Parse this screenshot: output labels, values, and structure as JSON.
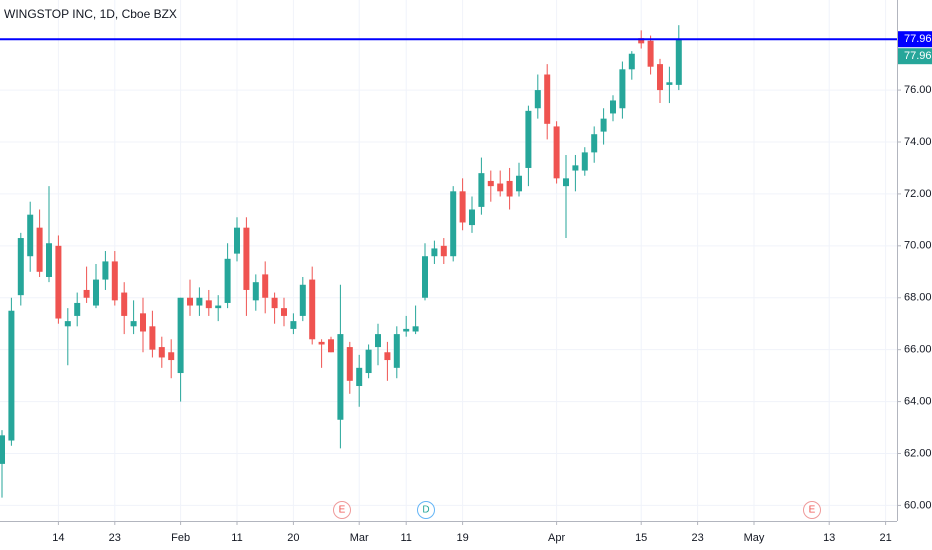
{
  "chart_data": {
    "type": "candlestick",
    "title": "WINGSTOP INC, 1D, Cboe BZX",
    "categories": [
      null,
      null,
      null,
      null,
      null,
      null,
      "14",
      null,
      null,
      null,
      null,
      null,
      "23",
      null,
      null,
      null,
      null,
      null,
      null,
      "Feb",
      null,
      null,
      null,
      null,
      null,
      "11",
      null,
      null,
      null,
      null,
      null,
      "20",
      null,
      null,
      null,
      null,
      null,
      null,
      "Mar",
      null,
      null,
      null,
      null,
      "11",
      null,
      null,
      null,
      null,
      null,
      "19",
      null,
      null,
      null,
      null,
      null,
      null,
      null,
      null,
      null,
      "Apr",
      null,
      null,
      null,
      null,
      null,
      null,
      null,
      null,
      "15",
      null,
      null,
      null,
      null,
      null,
      "23",
      null,
      null,
      null,
      null,
      null,
      "May",
      null,
      null,
      null,
      null,
      null,
      null,
      null,
      "13",
      null,
      null,
      null,
      null,
      null,
      "21",
      null
    ],
    "open": [
      61.6,
      62.5,
      68.1,
      69.6,
      70.7,
      68.8,
      70.0,
      66.9,
      67.3,
      68.3,
      67.7,
      68.7,
      69.4,
      68.2,
      66.9,
      67.4,
      66.9,
      66.1,
      65.9,
      65.1,
      68.0,
      67.7,
      67.9,
      67.6,
      67.8,
      69.7,
      70.7,
      67.9,
      68.9,
      68.0,
      67.6,
      66.8,
      67.3,
      68.7,
      66.3,
      66.4,
      63.3,
      66.1,
      64.6,
      65.1,
      66.1,
      65.9,
      65.3,
      66.7,
      66.7,
      68.0,
      69.6,
      70.0,
      69.6,
      72.1,
      70.8,
      71.5,
      72.5,
      72.4,
      72.5,
      72.1,
      73.0,
      75.3,
      76.6,
      74.6,
      72.3,
      72.9,
      72.9,
      73.6,
      74.4,
      75.1,
      75.3,
      76.8,
      78.0,
      77.9,
      77.0,
      76.2,
      76.2,
      null,
      null,
      null,
      null,
      null,
      null,
      null,
      null,
      null,
      null,
      null,
      null,
      null,
      null,
      null,
      null,
      null,
      null,
      null,
      null,
      null,
      null,
      null
    ],
    "high": [
      62.9,
      68.0,
      70.5,
      71.7,
      71.4,
      72.3,
      70.4,
      67.6,
      68.2,
      69.2,
      69.3,
      69.8,
      69.8,
      68.6,
      67.9,
      68.0,
      67.5,
      66.5,
      66.4,
      68.0,
      68.7,
      68.4,
      68.3,
      68.1,
      70.1,
      71.1,
      71.1,
      68.9,
      69.4,
      68.2,
      68.0,
      67.4,
      68.8,
      69.2,
      66.4,
      66.5,
      68.5,
      66.3,
      65.8,
      66.2,
      67.0,
      66.3,
      66.9,
      67.3,
      67.7,
      70.1,
      70.2,
      70.3,
      72.3,
      72.6,
      71.9,
      73.4,
      72.9,
      72.9,
      73.0,
      73.2,
      75.4,
      76.6,
      77.0,
      74.8,
      73.5,
      73.5,
      73.8,
      74.6,
      75.3,
      75.8,
      77.1,
      77.5,
      78.3,
      78.1,
      77.2,
      76.9,
      78.5,
      null,
      null,
      null,
      null,
      null,
      null,
      null,
      null,
      null,
      null,
      null,
      null,
      null,
      null,
      null,
      null,
      null,
      null,
      null,
      null,
      null,
      null,
      null
    ],
    "low": [
      60.3,
      62.3,
      67.7,
      69.0,
      68.8,
      68.6,
      67.0,
      65.4,
      66.9,
      67.8,
      67.6,
      68.3,
      67.7,
      66.6,
      66.6,
      65.9,
      65.7,
      65.3,
      64.9,
      64.0,
      67.3,
      67.3,
      67.3,
      67.1,
      67.6,
      69.4,
      67.3,
      67.5,
      67.4,
      67.0,
      66.9,
      66.6,
      67.1,
      66.2,
      65.3,
      65.9,
      62.2,
      64.3,
      63.8,
      64.9,
      65.4,
      64.8,
      64.9,
      66.5,
      66.6,
      67.9,
      69.3,
      69.3,
      69.4,
      70.6,
      70.5,
      71.2,
      71.7,
      71.9,
      71.4,
      71.9,
      72.3,
      74.9,
      74.1,
      72.4,
      70.3,
      72.1,
      72.7,
      73.2,
      73.9,
      74.8,
      74.9,
      76.4,
      77.6,
      76.6,
      75.5,
      75.5,
      76.0,
      null,
      null,
      null,
      null,
      null,
      null,
      null,
      null,
      null,
      null,
      null,
      null,
      null,
      null,
      null,
      null,
      null,
      null,
      null,
      null,
      null,
      null,
      null
    ],
    "close": [
      62.7,
      67.5,
      70.3,
      71.2,
      69.0,
      70.1,
      67.2,
      67.1,
      67.8,
      68.0,
      68.7,
      69.4,
      67.9,
      67.3,
      67.1,
      66.7,
      66.0,
      65.7,
      65.6,
      68.0,
      67.7,
      68.0,
      67.6,
      67.7,
      69.5,
      70.7,
      68.3,
      68.6,
      68.0,
      67.6,
      67.3,
      67.1,
      68.5,
      66.4,
      66.2,
      65.9,
      66.6,
      64.8,
      65.3,
      66.0,
      66.6,
      65.6,
      66.6,
      66.8,
      66.9,
      69.6,
      69.9,
      69.6,
      72.1,
      70.9,
      71.4,
      72.8,
      72.3,
      72.1,
      71.9,
      72.7,
      75.2,
      76.0,
      74.7,
      72.6,
      72.6,
      73.1,
      73.6,
      74.3,
      74.9,
      75.6,
      76.8,
      77.4,
      77.8,
      76.9,
      76.0,
      76.3,
      77.96,
      null,
      null,
      null,
      null,
      null,
      null,
      null,
      null,
      null,
      null,
      null,
      null,
      null,
      null,
      null,
      null,
      null,
      null,
      null,
      null,
      null,
      null,
      null
    ],
    "up_color": "#26a69a",
    "down_color": "#ef5350",
    "ylim": [
      59.4,
      79.47
    ],
    "yticks": [
      {
        "value": 60,
        "label": "60.00"
      },
      {
        "value": 62,
        "label": "62.00"
      },
      {
        "value": 64,
        "label": "64.00"
      },
      {
        "value": 66,
        "label": "66.00"
      },
      {
        "value": 68,
        "label": "68.00"
      },
      {
        "value": 70,
        "label": "70.00"
      },
      {
        "value": 72,
        "label": "72.00"
      },
      {
        "value": 74,
        "label": "74.00"
      },
      {
        "value": 76,
        "label": "76.00"
      }
    ],
    "grid": true,
    "horizontal_line": {
      "value": 77.96,
      "color": "#0000ff"
    },
    "events": [
      "E",
      "D",
      "E"
    ]
  }
}
